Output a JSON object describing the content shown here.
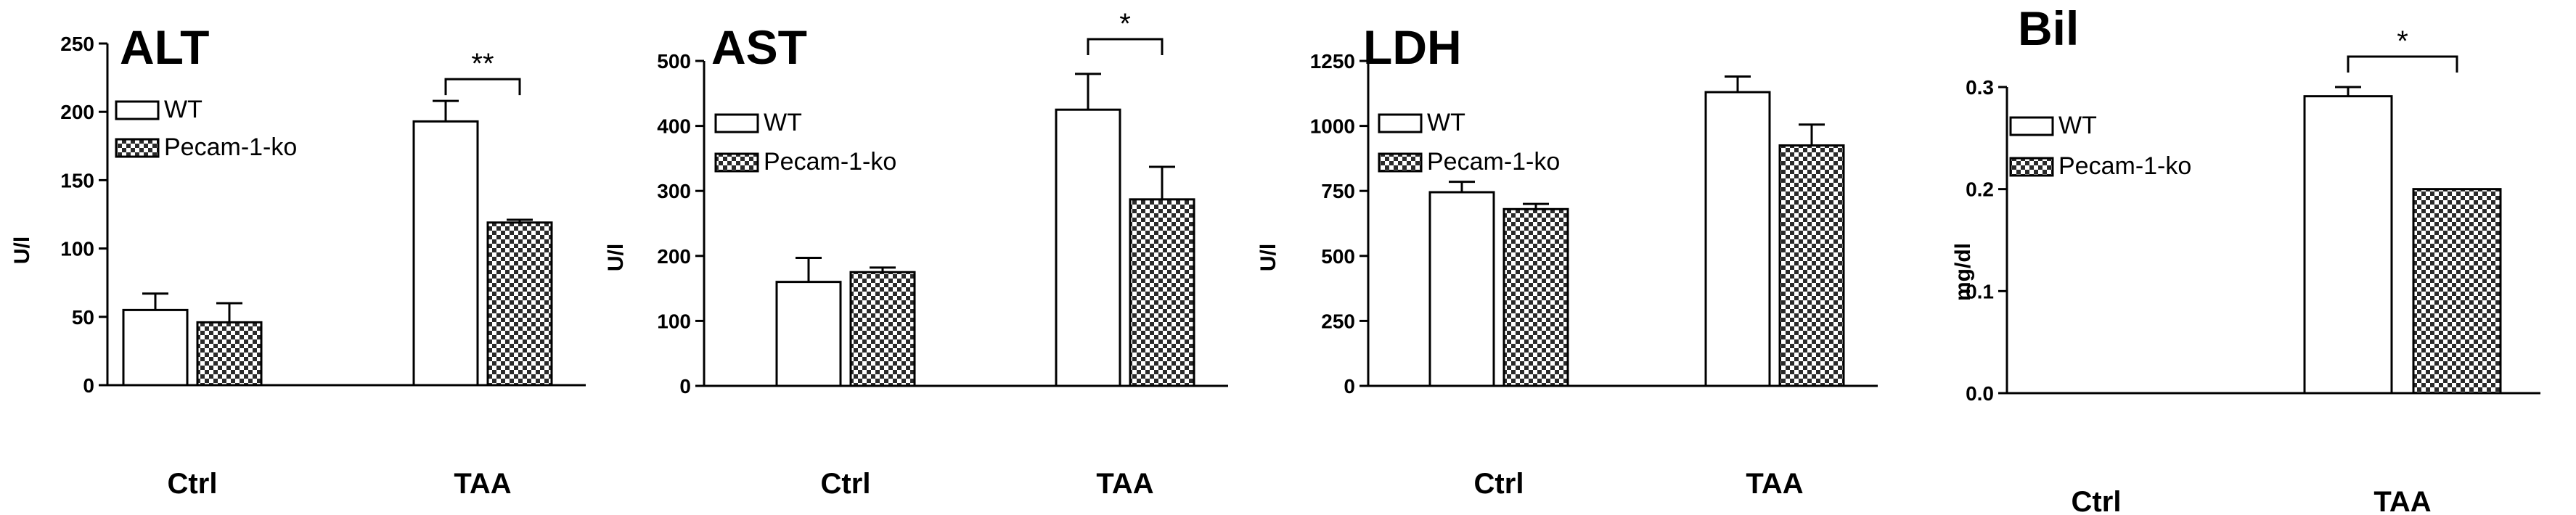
{
  "figure": {
    "panels_order": [
      "ALT",
      "AST",
      "LDH",
      "Bil"
    ]
  },
  "chart_data": [
    {
      "type": "bar",
      "title": "ALT",
      "ylabel": "U/l",
      "xlabel": "",
      "categories": [
        "Ctrl",
        "TAA"
      ],
      "ylim": [
        0,
        250
      ],
      "yticks": [
        "0",
        "50",
        "100",
        "150",
        "200",
        "250"
      ],
      "series": [
        {
          "name": "WT",
          "values": [
            55,
            193
          ],
          "errors": [
            12,
            15
          ],
          "style": "open"
        },
        {
          "name": "Pecam-1-ko",
          "values": [
            46,
            119
          ],
          "errors": [
            14,
            2
          ],
          "style": "checkered"
        }
      ],
      "significance": [
        {
          "category": "TAA",
          "label": "**"
        }
      ],
      "legend_position": "top-left",
      "grid": false
    },
    {
      "type": "bar",
      "title": "AST",
      "ylabel": "U/l",
      "xlabel": "",
      "categories": [
        "Ctrl",
        "TAA"
      ],
      "ylim": [
        0,
        500
      ],
      "yticks": [
        "0",
        "100",
        "200",
        "300",
        "400",
        "500"
      ],
      "series": [
        {
          "name": "WT",
          "values": [
            160,
            425
          ],
          "errors": [
            37,
            55
          ],
          "style": "open"
        },
        {
          "name": "Pecam-1-ko",
          "values": [
            175,
            287
          ],
          "errors": [
            7,
            50
          ],
          "style": "checkered"
        }
      ],
      "significance": [
        {
          "category": "TAA",
          "label": "*"
        }
      ],
      "legend_position": "top-left",
      "grid": false
    },
    {
      "type": "bar",
      "title": "LDH",
      "ylabel": "U/l",
      "xlabel": "",
      "categories": [
        "Ctrl",
        "TAA"
      ],
      "ylim": [
        0,
        1250
      ],
      "yticks": [
        "0",
        "250",
        "500",
        "750",
        "1000",
        "1250"
      ],
      "series": [
        {
          "name": "WT",
          "values": [
            745,
            1130
          ],
          "errors": [
            40,
            60
          ],
          "style": "open"
        },
        {
          "name": "Pecam-1-ko",
          "values": [
            680,
            925
          ],
          "errors": [
            20,
            80
          ],
          "style": "checkered"
        }
      ],
      "significance": [],
      "legend_position": "top-left",
      "grid": false
    },
    {
      "type": "bar",
      "title": "Bil",
      "ylabel": "mg/dl",
      "xlabel": "",
      "categories": [
        "Ctrl",
        "TAA"
      ],
      "ylim": [
        0,
        0.3
      ],
      "yticks": [
        "0.0",
        "0.1",
        "0.2",
        "0.3"
      ],
      "series": [
        {
          "name": "WT",
          "values": [
            0,
            0.291
          ],
          "errors": [
            0,
            0.009
          ],
          "style": "open"
        },
        {
          "name": "Pecam-1-ko",
          "values": [
            0,
            0.2
          ],
          "errors": [
            0,
            0
          ],
          "style": "checkered"
        }
      ],
      "significance": [
        {
          "category": "TAA",
          "label": "*"
        }
      ],
      "legend_position": "top-left",
      "grid": false
    }
  ]
}
